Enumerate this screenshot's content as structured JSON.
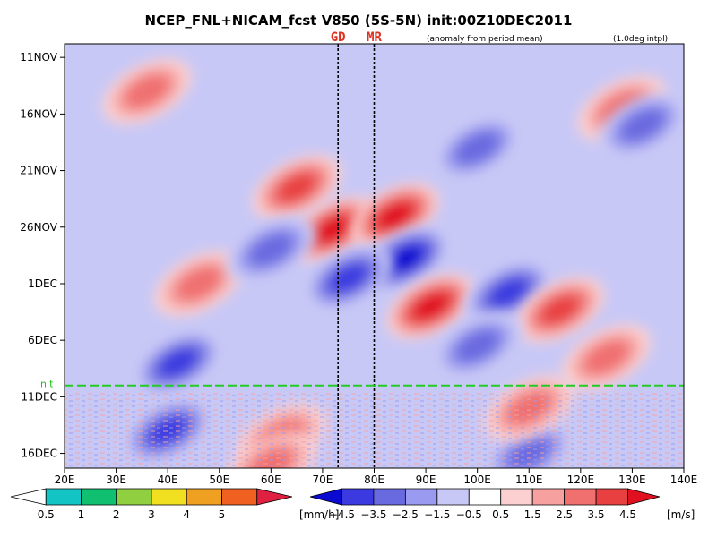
{
  "chart_data": {
    "type": "heatmap",
    "title": "NCEP_FNL+NICAM_fcst V850 (5S-5N) init:00Z10DEC2011",
    "subtitle": "(anomaly from period mean)",
    "note": "(1.0deg intpl)",
    "x_ticks": [
      "20E",
      "30E",
      "40E",
      "50E",
      "60E",
      "70E",
      "80E",
      "90E",
      "100E",
      "110E",
      "120E",
      "130E",
      "140E"
    ],
    "x_tick_values": [
      20,
      30,
      40,
      50,
      60,
      70,
      80,
      90,
      100,
      110,
      120,
      130,
      140
    ],
    "xlim": [
      20,
      140
    ],
    "y_ticks": [
      "11NOV",
      "16NOV",
      "21NOV",
      "26NOV",
      "1DEC",
      "6DEC",
      "11DEC",
      "16DEC"
    ],
    "y_tick_days": [
      0,
      5,
      10,
      15,
      20,
      25,
      30,
      35
    ],
    "ylim_days": [
      -1.2,
      36.3
    ],
    "init_label": "init",
    "init_day": 29,
    "site_markers": [
      {
        "label": "GD",
        "lon": 73
      },
      {
        "label": "MR",
        "lon": 80
      }
    ],
    "anomaly_features": [
      {
        "sign": "+",
        "lon": 72,
        "day": 15.2,
        "magnitude": 5
      },
      {
        "sign": "+",
        "lon": 84,
        "day": 14.0,
        "magnitude": 4.5
      },
      {
        "sign": "+",
        "lon": 65,
        "day": 11.5,
        "magnitude": 4
      },
      {
        "sign": "-",
        "lon": 86,
        "day": 17.8,
        "magnitude": 5
      },
      {
        "sign": "-",
        "lon": 75,
        "day": 19.5,
        "magnitude": 3.5
      },
      {
        "sign": "+",
        "lon": 91,
        "day": 22.0,
        "magnitude": 5
      },
      {
        "sign": "-",
        "lon": 106,
        "day": 20.8,
        "magnitude": 4
      },
      {
        "sign": "+",
        "lon": 116,
        "day": 22.3,
        "magnitude": 4
      },
      {
        "sign": "-",
        "lon": 42,
        "day": 27.0,
        "magnitude": 4
      },
      {
        "sign": "+",
        "lon": 46,
        "day": 20.0,
        "magnitude": 3
      },
      {
        "sign": "-",
        "lon": 100,
        "day": 25.5,
        "magnitude": 3
      },
      {
        "sign": "+",
        "lon": 125,
        "day": 26.5,
        "magnitude": 3
      },
      {
        "sign": "-",
        "lon": 60,
        "day": 17.0,
        "magnitude": 3
      },
      {
        "sign": "+",
        "lon": 36,
        "day": 3.0,
        "magnitude": 3
      },
      {
        "sign": "-",
        "lon": 100,
        "day": 8.0,
        "magnitude": 3
      },
      {
        "sign": "+",
        "lon": 128,
        "day": 4.5,
        "magnitude": 3
      },
      {
        "sign": "-",
        "lon": 132,
        "day": 6.0,
        "magnitude": 3
      },
      {
        "sign": "-",
        "lon": 40,
        "day": 33.0,
        "magnitude": 4
      },
      {
        "sign": "+",
        "lon": 62,
        "day": 33.5,
        "magnitude": 3
      },
      {
        "sign": "+",
        "lon": 60,
        "day": 36.0,
        "magnitude": 3
      },
      {
        "sign": "-",
        "lon": 110,
        "day": 35.0,
        "magnitude": 3
      },
      {
        "sign": "+",
        "lon": 110,
        "day": 31.0,
        "magnitude": 3
      }
    ],
    "precip_colorbar": {
      "colors": [
        "#ffffff",
        "#12c4c4",
        "#10c070",
        "#90d040",
        "#f0e020",
        "#f0a020",
        "#f06020",
        "#e02040"
      ],
      "labels": [
        "0.5",
        "1",
        "2",
        "3",
        "4",
        "5"
      ],
      "unit": "[mm/h]"
    },
    "wind_colorbar": {
      "colors": [
        "#0a0ad0",
        "#3a3ae0",
        "#6a6ae0",
        "#9a9af0",
        "#c8c8f6",
        "#ffffff",
        "#fcd0d0",
        "#f6a0a0",
        "#f07070",
        "#e84040",
        "#e01020"
      ],
      "labels": [
        "−4.5",
        "−3.5",
        "−2.5",
        "−1.5",
        "−0.5",
        "0.5",
        "1.5",
        "2.5",
        "3.5",
        "4.5"
      ],
      "unit": "[m/s]"
    }
  }
}
